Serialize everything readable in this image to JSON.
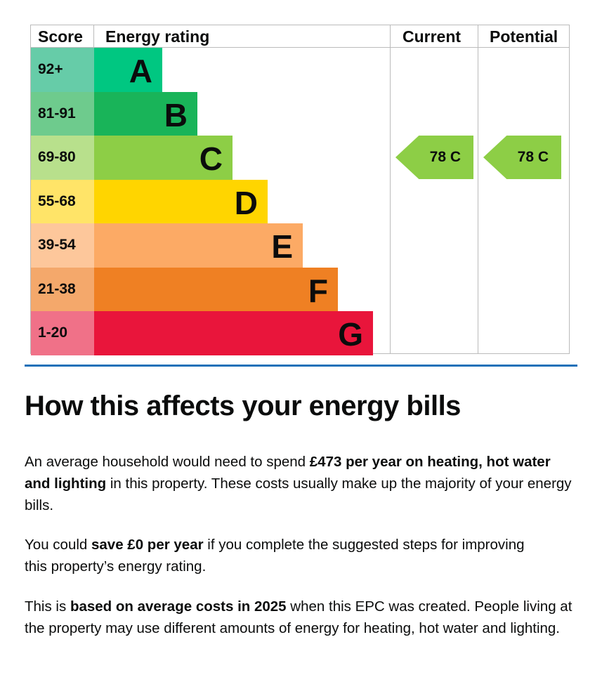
{
  "chart": {
    "headers": {
      "score": "Score",
      "rating": "Energy rating",
      "current": "Current",
      "potential": "Potential"
    },
    "bands": [
      {
        "score": "92+",
        "letter": "A",
        "color": "#00c781",
        "light": "#66cca8"
      },
      {
        "score": "81-91",
        "letter": "B",
        "color": "#19b459",
        "light": "#6ecb8d"
      },
      {
        "score": "69-80",
        "letter": "C",
        "color": "#8dce46",
        "light": "#b8e08c"
      },
      {
        "score": "55-68",
        "letter": "D",
        "color": "#ffd500",
        "light": "#ffe468"
      },
      {
        "score": "39-54",
        "letter": "E",
        "color": "#fcaa65",
        "light": "#fdc79b"
      },
      {
        "score": "21-38",
        "letter": "F",
        "color": "#ef8023",
        "light": "#f4a86b"
      },
      {
        "score": "1-20",
        "letter": "G",
        "color": "#e9153b",
        "light": "#f07188"
      }
    ],
    "current": {
      "value": "78 C",
      "band": "C",
      "color": "#8dce46"
    },
    "potential": {
      "value": "78 C",
      "band": "C",
      "color": "#8dce46"
    }
  },
  "section": {
    "title": "How this affects your energy bills",
    "p1": {
      "a": "An average household would need to spend ",
      "b": "£473 per year on heating, hot water and lighting",
      "c": " in this property. These costs usually make up the majority of your energy bills."
    },
    "p2": {
      "a": "You could ",
      "b": "save £0 per year",
      "c": " if you complete the suggested steps for improving this property’s energy rating."
    },
    "p3": {
      "a": "This is ",
      "b": "based on average costs in 2025",
      "c": " when this EPC was created. People living at the property may use different amounts of energy for heating, hot water and lighting."
    }
  }
}
